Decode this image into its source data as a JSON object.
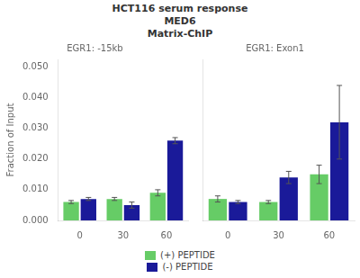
{
  "title": "HCT116 serum response\nMED6\nMatrix-ChIP",
  "legend": "bottom",
  "chart_data": [
    {
      "type": "bar",
      "title": "EGR1: -15kb",
      "categories": [
        "0",
        "30",
        "60"
      ],
      "ylabel": "Fraction of Input",
      "ylim": [
        0,
        0.0525
      ],
      "yticks": [
        {
          "value": 0.0,
          "label": "0.000"
        },
        {
          "value": 0.01,
          "label": "0.010"
        },
        {
          "value": 0.02,
          "label": "0.020"
        },
        {
          "value": 0.03,
          "label": "0.030"
        },
        {
          "value": 0.04,
          "label": "0.040"
        },
        {
          "value": 0.05,
          "label": "0.050"
        }
      ],
      "grid": false,
      "series": [
        {
          "name": "(+) PEPTIDE",
          "color": "#66CC66",
          "values": [
            0.006,
            0.007,
            0.009
          ],
          "errors": [
            0.0005,
            0.0005,
            0.001
          ]
        },
        {
          "name": "(-) PEPTIDE",
          "color": "#1A1A99",
          "values": [
            0.007,
            0.005,
            0.026
          ],
          "errors": [
            0.0005,
            0.001,
            0.001
          ]
        }
      ]
    },
    {
      "type": "bar",
      "title": "EGR1: Exon1",
      "categories": [
        "0",
        "30",
        "60"
      ],
      "ylim": [
        0,
        0.0525
      ],
      "yticks": [
        {
          "value": 0.0,
          "label": "0.000"
        },
        {
          "value": 0.01,
          "label": "0.010"
        },
        {
          "value": 0.02,
          "label": "0.020"
        },
        {
          "value": 0.03,
          "label": "0.030"
        },
        {
          "value": 0.04,
          "label": "0.040"
        },
        {
          "value": 0.05,
          "label": "0.050"
        }
      ],
      "grid": false,
      "tick_labels": "x",
      "series": [
        {
          "name": "(+) PEPTIDE",
          "color": "#66CC66",
          "values": [
            0.007,
            0.006,
            0.015
          ],
          "errors": [
            0.001,
            0.0005,
            0.003
          ]
        },
        {
          "name": "(-) PEPTIDE",
          "color": "#1A1A99",
          "values": [
            0.006,
            0.014,
            0.032
          ],
          "errors": [
            0.0005,
            0.002,
            0.012
          ]
        }
      ]
    }
  ]
}
